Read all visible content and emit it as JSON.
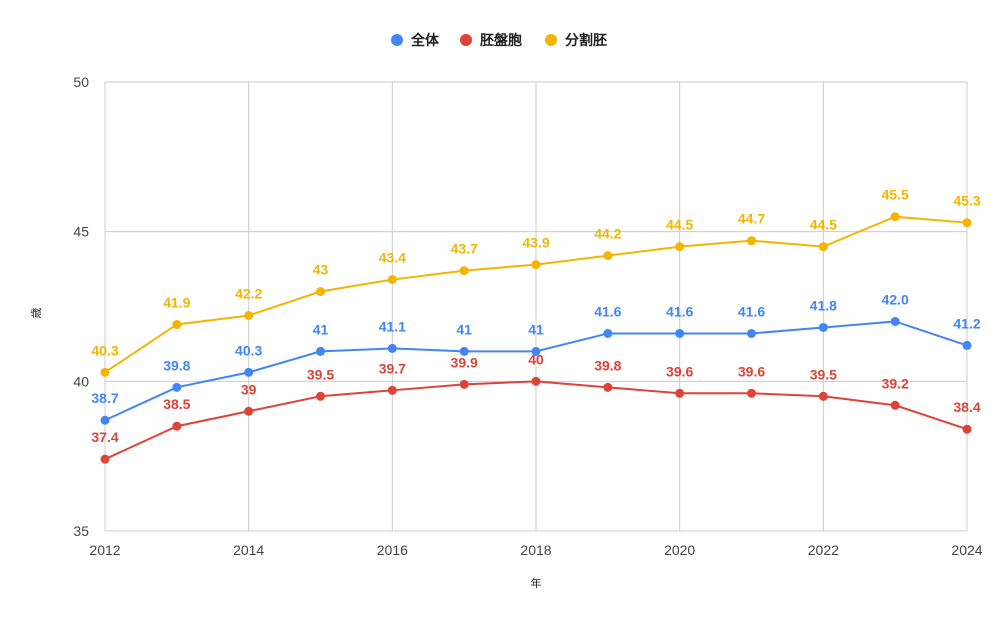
{
  "chart_data": {
    "type": "line",
    "title": "",
    "xlabel": "年",
    "ylabel": "歳",
    "x": [
      2012,
      2013,
      2014,
      2015,
      2016,
      2017,
      2018,
      2019,
      2020,
      2021,
      2022,
      2023,
      2024
    ],
    "x_ticks": [
      "2012",
      "2014",
      "2016",
      "2018",
      "2020",
      "2022",
      "2024"
    ],
    "ylim": [
      35,
      50
    ],
    "y_ticks": [
      "35",
      "40",
      "45",
      "50"
    ],
    "grid": true,
    "legend_position": "top",
    "series": [
      {
        "name": "全体",
        "color": "#4285F4",
        "values": [
          38.7,
          39.8,
          40.3,
          41,
          41.1,
          41,
          41,
          41.6,
          41.6,
          41.6,
          41.8,
          42.0,
          41.2
        ],
        "labels": [
          "38.7",
          "39.8",
          "40.3",
          "41",
          "41.1",
          "41",
          "41",
          "41.6",
          "41.6",
          "41.6",
          "41.8",
          "42.0",
          "41.2"
        ]
      },
      {
        "name": "胚盤胞",
        "color": "#DB4437",
        "values": [
          37.4,
          38.5,
          39,
          39.5,
          39.7,
          39.9,
          40,
          39.8,
          39.6,
          39.6,
          39.5,
          39.2,
          38.4
        ],
        "labels": [
          "37.4",
          "38.5",
          "39",
          "39.5",
          "39.7",
          "39.9",
          "40",
          "39.8",
          "39.6",
          "39.6",
          "39.5",
          "39.2",
          "38.4"
        ]
      },
      {
        "name": "分割胚",
        "color": "#F4B400",
        "values": [
          40.3,
          41.9,
          42.2,
          43,
          43.4,
          43.7,
          43.9,
          44.2,
          44.5,
          44.7,
          44.5,
          45.5,
          45.3
        ],
        "labels": [
          "40.3",
          "41.9",
          "42.2",
          "43",
          "43.4",
          "43.7",
          "43.9",
          "44.2",
          "44.5",
          "44.7",
          "44.5",
          "45.5",
          "45.3"
        ]
      }
    ]
  }
}
